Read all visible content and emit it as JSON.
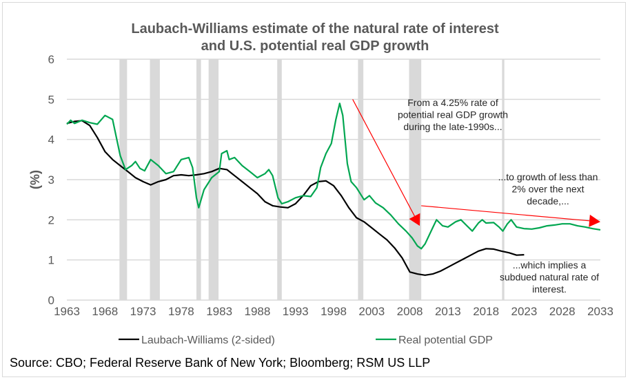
{
  "colors": {
    "lw_line": "#000000",
    "gdp_line": "#00a650",
    "recession": "#d9d9d9",
    "grid": "#d9d9d9",
    "arrow": "#ff0000"
  },
  "chart_data": {
    "type": "line",
    "title": "Laubach-Williams estimate of the natural rate of interest and U.S. potential real GDP growth",
    "title_lines": [
      "Laubach-Williams estimate of the natural rate of interest",
      "and U.S. potential real GDP growth"
    ],
    "xlabel": "",
    "ylabel": "(%)",
    "xlim": [
      1963,
      2033
    ],
    "ylim": [
      0,
      6
    ],
    "grid": true,
    "x_ticks": [
      "1963",
      "1968",
      "1973",
      "1978",
      "1983",
      "1988",
      "1993",
      "1998",
      "2003",
      "2008",
      "2013",
      "2018",
      "2023",
      "2028",
      "2033"
    ],
    "y_ticks": [
      "0",
      "1",
      "2",
      "3",
      "4",
      "5",
      "6"
    ],
    "legend_position": "bottom",
    "recessions": [
      [
        1969.9,
        1970.9
      ],
      [
        1973.9,
        1975.2
      ],
      [
        1980.0,
        1980.6
      ],
      [
        1981.6,
        1982.9
      ],
      [
        1990.6,
        1991.2
      ],
      [
        2001.2,
        2001.9
      ],
      [
        2007.9,
        2009.5
      ],
      [
        2020.1,
        2020.4
      ]
    ],
    "series": [
      {
        "name": "Laubach-Williams (2-sided)",
        "points": [
          [
            1963,
            4.4
          ],
          [
            1964,
            4.45
          ],
          [
            1965,
            4.47
          ],
          [
            1966,
            4.35
          ],
          [
            1967,
            4.05
          ],
          [
            1968,
            3.7
          ],
          [
            1969,
            3.5
          ],
          [
            1970,
            3.35
          ],
          [
            1971,
            3.2
          ],
          [
            1972,
            3.05
          ],
          [
            1973,
            2.95
          ],
          [
            1974,
            2.87
          ],
          [
            1975,
            2.95
          ],
          [
            1976,
            3.0
          ],
          [
            1977,
            3.1
          ],
          [
            1978,
            3.12
          ],
          [
            1979,
            3.1
          ],
          [
            1980,
            3.12
          ],
          [
            1981,
            3.15
          ],
          [
            1982,
            3.2
          ],
          [
            1983,
            3.28
          ],
          [
            1984,
            3.25
          ],
          [
            1985,
            3.1
          ],
          [
            1986,
            2.95
          ],
          [
            1987,
            2.8
          ],
          [
            1988,
            2.65
          ],
          [
            1989,
            2.45
          ],
          [
            1990,
            2.35
          ],
          [
            1991,
            2.32
          ],
          [
            1992,
            2.3
          ],
          [
            1993,
            2.4
          ],
          [
            1994,
            2.6
          ],
          [
            1995,
            2.85
          ],
          [
            1996,
            2.95
          ],
          [
            1997,
            2.97
          ],
          [
            1998,
            2.85
          ],
          [
            1999,
            2.6
          ],
          [
            2000,
            2.3
          ],
          [
            2001,
            2.05
          ],
          [
            2002,
            1.95
          ],
          [
            2003,
            1.8
          ],
          [
            2004,
            1.65
          ],
          [
            2005,
            1.5
          ],
          [
            2006,
            1.3
          ],
          [
            2007,
            1.05
          ],
          [
            2008,
            0.7
          ],
          [
            2009,
            0.65
          ],
          [
            2010,
            0.62
          ],
          [
            2011,
            0.65
          ],
          [
            2012,
            0.72
          ],
          [
            2013,
            0.82
          ],
          [
            2014,
            0.92
          ],
          [
            2015,
            1.02
          ],
          [
            2016,
            1.12
          ],
          [
            2017,
            1.22
          ],
          [
            2018,
            1.28
          ],
          [
            2019,
            1.27
          ],
          [
            2020,
            1.22
          ],
          [
            2021,
            1.18
          ],
          [
            2022,
            1.12
          ],
          [
            2023,
            1.13
          ]
        ]
      },
      {
        "name": "Real potential GDP",
        "points": [
          [
            1963,
            4.38
          ],
          [
            1963.5,
            4.48
          ],
          [
            1964,
            4.4
          ],
          [
            1965,
            4.48
          ],
          [
            1966,
            4.42
          ],
          [
            1967,
            4.38
          ],
          [
            1968,
            4.6
          ],
          [
            1969,
            4.5
          ],
          [
            1970,
            3.6
          ],
          [
            1970.7,
            3.25
          ],
          [
            1971.5,
            3.35
          ],
          [
            1972,
            3.45
          ],
          [
            1972.6,
            3.28
          ],
          [
            1973.2,
            3.22
          ],
          [
            1974,
            3.5
          ],
          [
            1975,
            3.35
          ],
          [
            1976,
            3.15
          ],
          [
            1977,
            3.2
          ],
          [
            1978,
            3.5
          ],
          [
            1979,
            3.55
          ],
          [
            1979.5,
            3.3
          ],
          [
            1980,
            2.55
          ],
          [
            1980.3,
            2.3
          ],
          [
            1981,
            2.75
          ],
          [
            1982,
            3.05
          ],
          [
            1983,
            3.2
          ],
          [
            1983.3,
            3.65
          ],
          [
            1984,
            3.72
          ],
          [
            1984.3,
            3.5
          ],
          [
            1985,
            3.55
          ],
          [
            1986,
            3.35
          ],
          [
            1987,
            3.2
          ],
          [
            1988,
            3.05
          ],
          [
            1989,
            3.15
          ],
          [
            1989.5,
            3.25
          ],
          [
            1990,
            3.1
          ],
          [
            1990.7,
            2.55
          ],
          [
            1991.2,
            2.4
          ],
          [
            1992,
            2.45
          ],
          [
            1993,
            2.55
          ],
          [
            1994,
            2.6
          ],
          [
            1995,
            2.58
          ],
          [
            1995.8,
            2.8
          ],
          [
            1996.3,
            3.3
          ],
          [
            1997,
            3.65
          ],
          [
            1997.7,
            3.9
          ],
          [
            1998.3,
            4.5
          ],
          [
            1998.8,
            4.9
          ],
          [
            1999.2,
            4.6
          ],
          [
            1999.8,
            3.4
          ],
          [
            2000.3,
            2.95
          ],
          [
            2001,
            2.8
          ],
          [
            2002,
            2.5
          ],
          [
            2002.7,
            2.6
          ],
          [
            2003.5,
            2.42
          ],
          [
            2004.5,
            2.3
          ],
          [
            2005.5,
            2.12
          ],
          [
            2006.5,
            1.9
          ],
          [
            2007.5,
            1.72
          ],
          [
            2008.3,
            1.55
          ],
          [
            2009,
            1.35
          ],
          [
            2009.5,
            1.28
          ],
          [
            2010,
            1.4
          ],
          [
            2011,
            1.8
          ],
          [
            2011.5,
            2.0
          ],
          [
            2012.3,
            1.85
          ],
          [
            2013,
            1.82
          ],
          [
            2014,
            1.95
          ],
          [
            2014.7,
            2.0
          ],
          [
            2015.5,
            1.85
          ],
          [
            2016.2,
            1.72
          ],
          [
            2017,
            1.92
          ],
          [
            2017.5,
            2.0
          ],
          [
            2018,
            1.92
          ],
          [
            2019,
            1.93
          ],
          [
            2019.7,
            1.82
          ],
          [
            2020.2,
            1.72
          ],
          [
            2020.8,
            1.9
          ],
          [
            2021.3,
            2.0
          ],
          [
            2022,
            1.82
          ],
          [
            2023,
            1.78
          ],
          [
            2024,
            1.77
          ],
          [
            2025,
            1.8
          ],
          [
            2026,
            1.85
          ],
          [
            2027,
            1.87
          ],
          [
            2028,
            1.9
          ],
          [
            2029,
            1.9
          ],
          [
            2030,
            1.85
          ],
          [
            2031,
            1.82
          ],
          [
            2032,
            1.78
          ],
          [
            2033,
            1.75
          ]
        ]
      }
    ],
    "annotations": [
      {
        "id": "annot-late-1990s",
        "lines": [
          "From a 4.25% rate of",
          "potential real GDP growth",
          "during the late-1990s..."
        ]
      },
      {
        "id": "annot-next-decade",
        "lines": [
          "...to growth of less than",
          "2% over the next",
          "decade,..."
        ]
      },
      {
        "id": "annot-subdued",
        "lines": [
          "...which implies a",
          "subdued natural rate of",
          "interest."
        ]
      }
    ],
    "arrows": [
      {
        "name": "arrow-down",
        "from": [
          2000.5,
          5.0
        ],
        "to": [
          2009.3,
          1.85
        ]
      },
      {
        "name": "arrow-flat",
        "from": [
          2009.5,
          2.35
        ],
        "to": [
          2033,
          1.95
        ]
      }
    ]
  },
  "legend": [
    {
      "label": "Laubach-Williams (2-sided)",
      "color": "#000000"
    },
    {
      "label": "Real potential GDP",
      "color": "#00a650"
    }
  ],
  "source": "Source: CBO; Federal Reserve Bank of New York; Bloomberg; RSM US LLP"
}
